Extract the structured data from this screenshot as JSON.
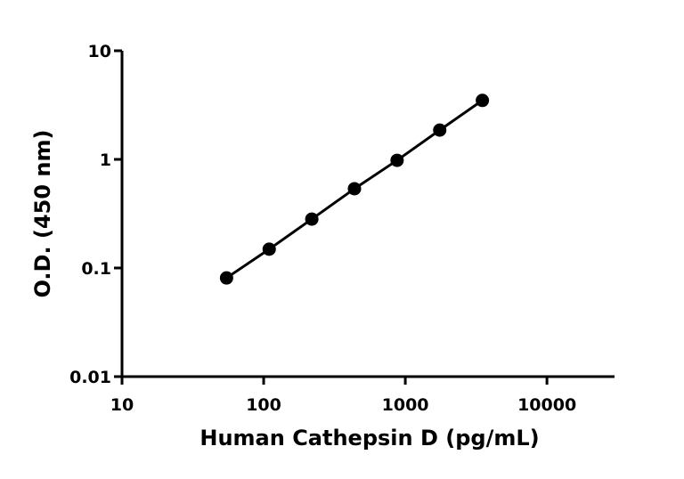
{
  "chart_data": {
    "type": "line",
    "x_label": "Human Cathepsin D (pg/mL)",
    "y_label": "O.D. (450 nm)",
    "x": [
      54.7,
      109.4,
      218.75,
      437.5,
      875,
      1750,
      3500
    ],
    "series": [
      {
        "color": "#000000",
        "values": [
          0.081,
          0.149,
          0.282,
          0.537,
          0.98,
          1.86,
          3.49
        ]
      }
    ],
    "xscale": "log",
    "yscale": "log",
    "xlim": [
      10,
      30000
    ],
    "ylim": [
      0.01,
      10
    ],
    "xticks": [
      10,
      100,
      1000,
      10000
    ],
    "yticks": [
      0.01,
      0.1,
      1,
      10
    ],
    "markers": true
  }
}
